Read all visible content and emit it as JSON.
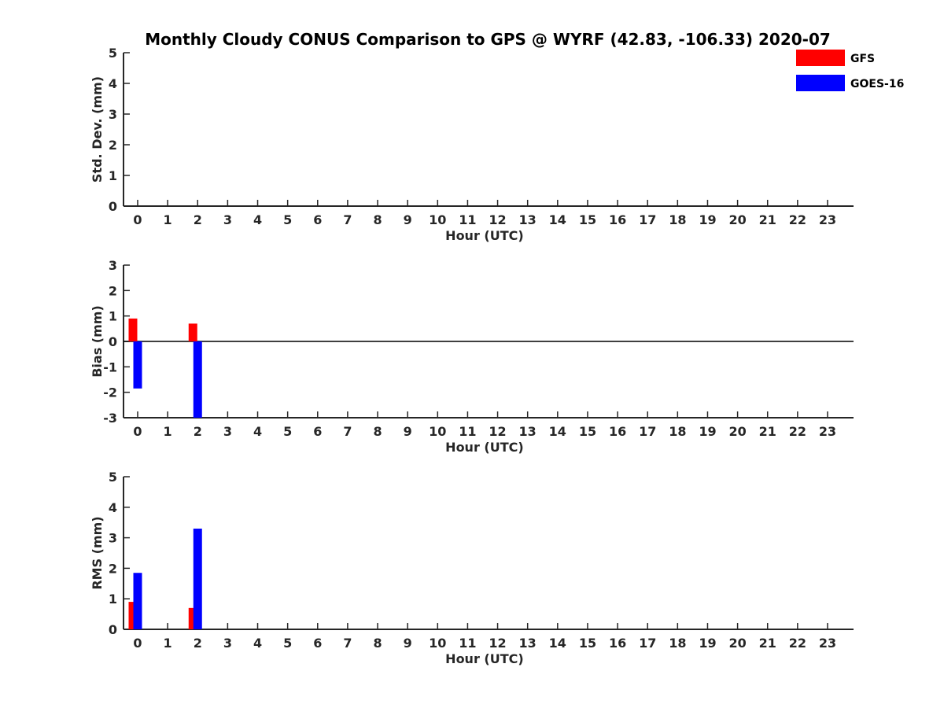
{
  "title": "Monthly Cloudy CONUS Comparison to GPS @ WYRF (42.83, -106.33) 2020-07",
  "colors": {
    "GFS": "#ff0000",
    "GOES-16": "#0000ff",
    "axis": "#262626"
  },
  "legend": {
    "placement": "top-right",
    "entries": [
      "GFS",
      "GOES-16"
    ]
  },
  "chart_data": [
    {
      "type": "bar",
      "ylabel": "Std. Dev. (mm)",
      "xlabel": "Hour (UTC)",
      "ylim": [
        0,
        5
      ],
      "yticks": [
        0,
        1,
        2,
        3,
        4,
        5
      ],
      "categories": [
        "0",
        "1",
        "2",
        "3",
        "4",
        "5",
        "6",
        "7",
        "8",
        "9",
        "10",
        "11",
        "12",
        "13",
        "14",
        "15",
        "16",
        "17",
        "18",
        "19",
        "20",
        "21",
        "22",
        "23"
      ],
      "series": [
        {
          "name": "GFS",
          "values": [
            null,
            null,
            null,
            null,
            null,
            null,
            null,
            null,
            null,
            null,
            null,
            null,
            null,
            null,
            null,
            null,
            null,
            null,
            null,
            null,
            null,
            null,
            null,
            null
          ]
        },
        {
          "name": "GOES-16",
          "values": [
            null,
            null,
            null,
            null,
            null,
            null,
            null,
            null,
            null,
            null,
            null,
            null,
            null,
            null,
            null,
            null,
            null,
            null,
            null,
            null,
            null,
            null,
            null,
            null
          ]
        }
      ]
    },
    {
      "type": "bar",
      "ylabel": "Bias (mm)",
      "xlabel": "Hour (UTC)",
      "ylim": [
        -3,
        3
      ],
      "yticks": [
        -3,
        -2,
        -1,
        0,
        1,
        2,
        3
      ],
      "zero_line": true,
      "categories": [
        "0",
        "1",
        "2",
        "3",
        "4",
        "5",
        "6",
        "7",
        "8",
        "9",
        "10",
        "11",
        "12",
        "13",
        "14",
        "15",
        "16",
        "17",
        "18",
        "19",
        "20",
        "21",
        "22",
        "23"
      ],
      "series": [
        {
          "name": "GFS",
          "values": [
            0.9,
            null,
            0.7,
            null,
            null,
            null,
            null,
            null,
            null,
            null,
            null,
            null,
            null,
            null,
            null,
            null,
            null,
            null,
            null,
            null,
            null,
            null,
            null,
            null
          ]
        },
        {
          "name": "GOES-16",
          "values": [
            -1.85,
            null,
            -3.0,
            null,
            null,
            null,
            null,
            null,
            null,
            null,
            null,
            null,
            null,
            null,
            null,
            null,
            null,
            null,
            null,
            null,
            null,
            null,
            null,
            null
          ]
        }
      ]
    },
    {
      "type": "bar",
      "ylabel": "RMS (mm)",
      "xlabel": "Hour (UTC)",
      "ylim": [
        0,
        5
      ],
      "yticks": [
        0,
        1,
        2,
        3,
        4,
        5
      ],
      "categories": [
        "0",
        "1",
        "2",
        "3",
        "4",
        "5",
        "6",
        "7",
        "8",
        "9",
        "10",
        "11",
        "12",
        "13",
        "14",
        "15",
        "16",
        "17",
        "18",
        "19",
        "20",
        "21",
        "22",
        "23"
      ],
      "series": [
        {
          "name": "GFS",
          "values": [
            0.9,
            null,
            0.7,
            null,
            null,
            null,
            null,
            null,
            null,
            null,
            null,
            null,
            null,
            null,
            null,
            null,
            null,
            null,
            null,
            null,
            null,
            null,
            null,
            null
          ]
        },
        {
          "name": "GOES-16",
          "values": [
            1.85,
            null,
            3.3,
            null,
            null,
            null,
            null,
            null,
            null,
            null,
            null,
            null,
            null,
            null,
            null,
            null,
            null,
            null,
            null,
            null,
            null,
            null,
            null,
            null
          ]
        }
      ]
    }
  ]
}
